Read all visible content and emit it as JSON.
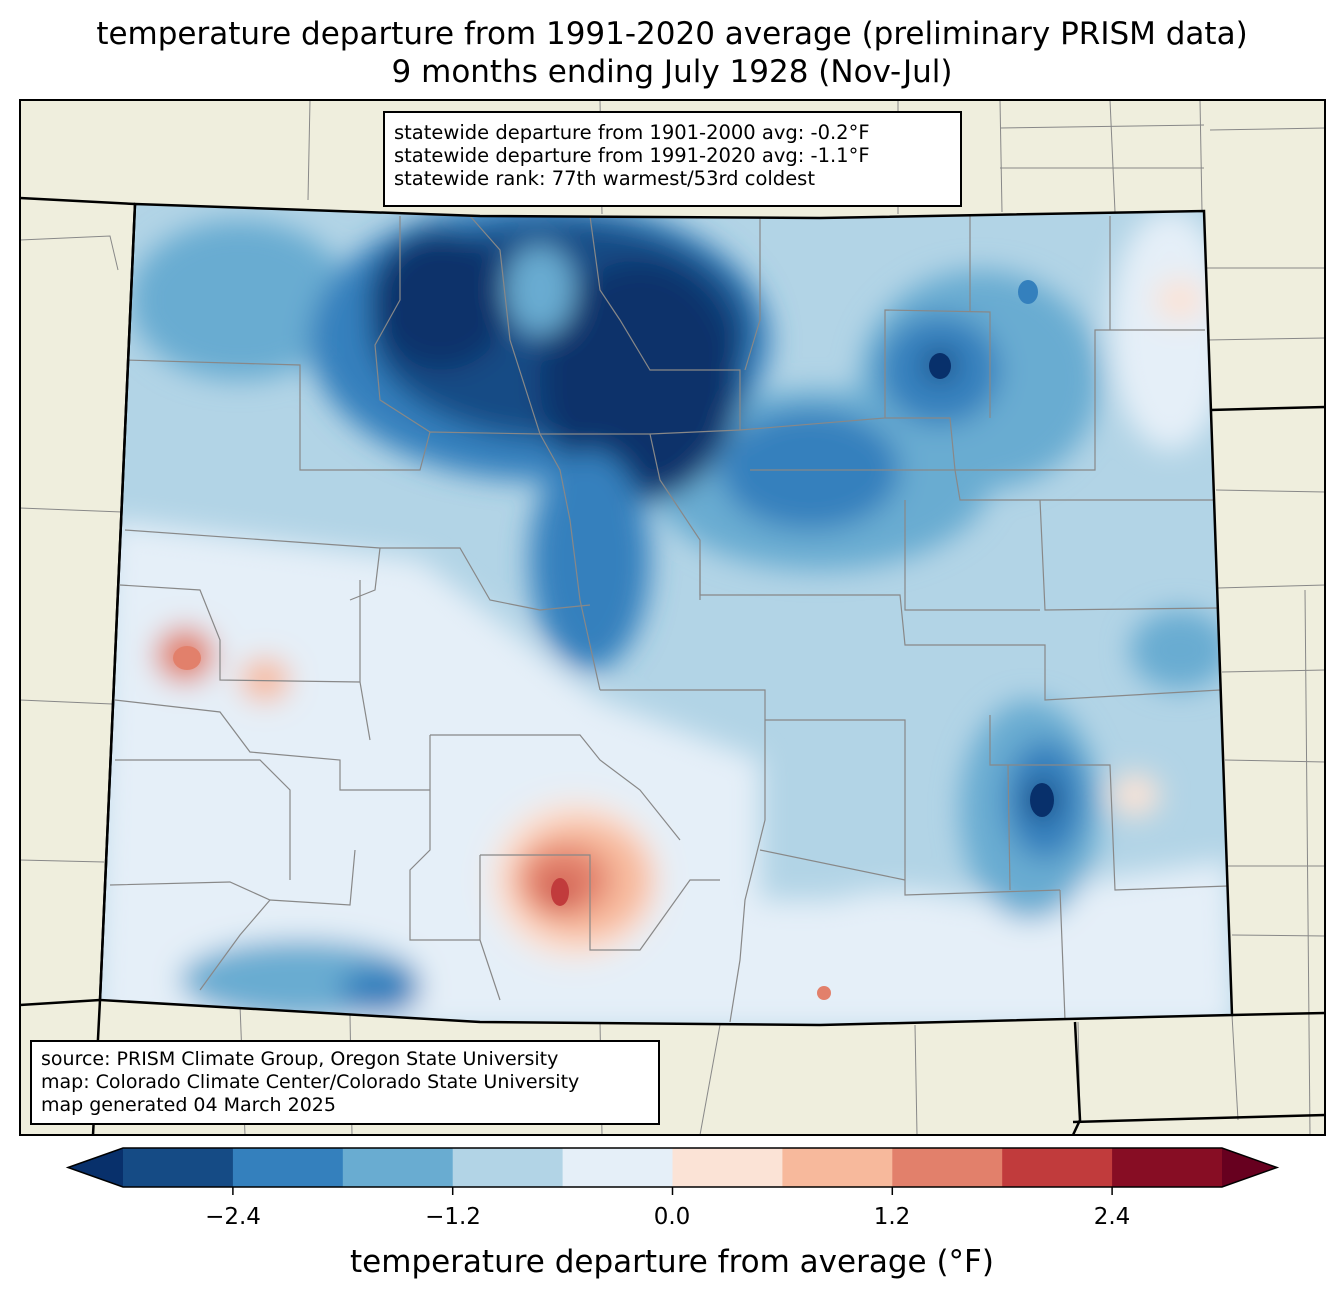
{
  "title": {
    "line1": "temperature departure from 1991-2020 average (preliminary PRISM data)",
    "line2": "9 months ending July 1928 (Nov-Jul)"
  },
  "stats_box": {
    "line1": "statewide departure from 1901-2000 avg: -0.2°F",
    "line2": "statewide departure from 1991-2020 avg: -1.1°F",
    "line3": "statewide rank: 77th warmest/53rd coldest"
  },
  "source_box": {
    "line1": "source: PRISM Climate Group, Oregon State University",
    "line2": "map: Colorado Climate Center/Colorado State University",
    "line3": "map generated 04 March 2025"
  },
  "colorbar": {
    "label": "temperature departure from average (°F)",
    "ticks": [
      "−2.4",
      "−1.2",
      "0.0",
      "1.2",
      "2.4"
    ],
    "bins": [
      -3.0,
      -2.4,
      -1.8,
      -1.2,
      -0.6,
      0.0,
      0.6,
      1.2,
      1.8,
      2.4,
      3.0
    ],
    "colors": [
      "#08306b",
      "#154b85",
      "#3480bd",
      "#69acd1",
      "#b2d4e6",
      "#e5eff8",
      "#fbe3d6",
      "#f7b99c",
      "#e2806b",
      "#c13b3c",
      "#870d24",
      "#67001f"
    ]
  },
  "map_colors": {
    "land_outside": "#efeedd",
    "county_line": "#888888",
    "state_line": "#000000"
  }
}
